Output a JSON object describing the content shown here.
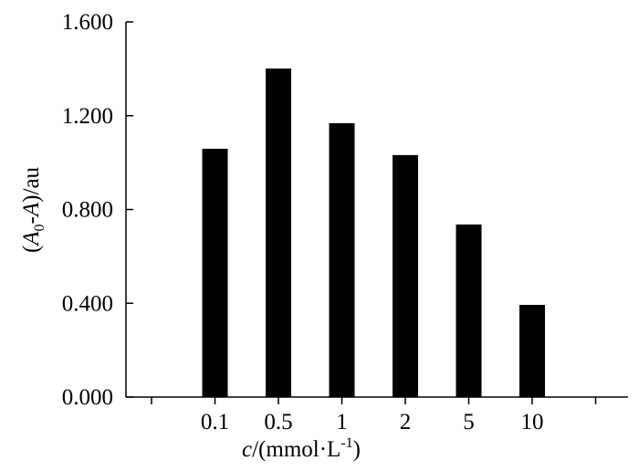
{
  "chart_data": {
    "type": "bar",
    "categories": [
      null,
      "0.1",
      "0.5",
      "1",
      "2",
      "5",
      "10",
      null
    ],
    "values": [
      null,
      1.059,
      1.401,
      1.168,
      1.032,
      0.736,
      0.393,
      null
    ],
    "color": "#000000",
    "ylim": [
      0,
      1.6
    ],
    "yticks": [
      {
        "value": 0,
        "label": "0.000"
      },
      {
        "value": 0.4,
        "label": "0.400"
      },
      {
        "value": 0.8,
        "label": "0.800"
      },
      {
        "value": 1.2,
        "label": "1.200"
      },
      {
        "value": 1.6,
        "label": "1.600"
      }
    ],
    "x_label": [
      "c",
      "/(mmol·L",
      "-1",
      ")"
    ],
    "y_label": [
      "(",
      "A",
      "0",
      "-",
      "A",
      ")/au"
    ]
  }
}
